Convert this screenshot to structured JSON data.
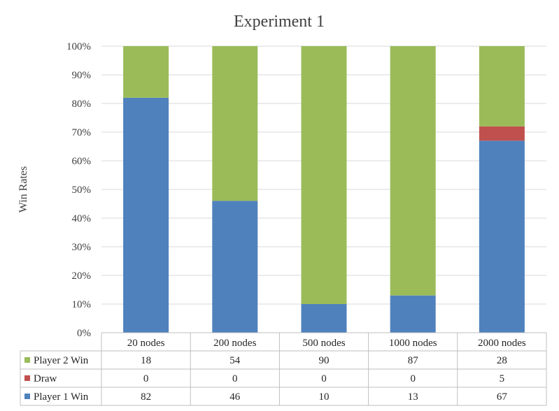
{
  "chart_data": {
    "type": "bar",
    "stacked": true,
    "percent_stacked": true,
    "title": "Experiment 1",
    "xlabel": "",
    "ylabel": "Win Rates",
    "ylim": [
      0,
      100
    ],
    "yticks": [
      "0%",
      "10%",
      "20%",
      "30%",
      "40%",
      "50%",
      "60%",
      "70%",
      "80%",
      "90%",
      "100%"
    ],
    "grid": true,
    "legend": "data-table",
    "categories": [
      "20 nodes",
      "200 nodes",
      "500 nodes",
      "1000 nodes",
      "2000 nodes"
    ],
    "series": [
      {
        "name": "Player 1 Win",
        "color": "#4f81bd",
        "values": [
          82,
          46,
          10,
          13,
          67
        ]
      },
      {
        "name": "Draw",
        "color": "#c0504d",
        "values": [
          0,
          0,
          0,
          0,
          5
        ]
      },
      {
        "name": "Player 2 Win",
        "color": "#9bbb59",
        "values": [
          18,
          54,
          90,
          87,
          28
        ]
      }
    ],
    "table_rows_order": [
      "Player 2 Win",
      "Draw",
      "Player 1 Win"
    ]
  }
}
